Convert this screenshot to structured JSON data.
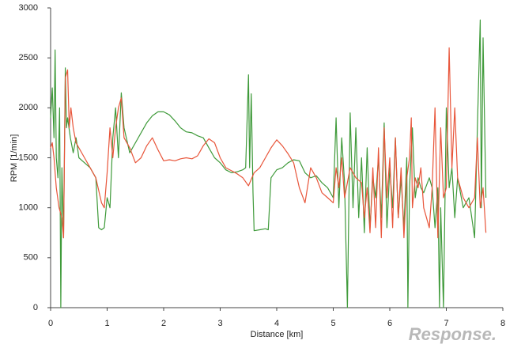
{
  "chart_data": {
    "type": "line",
    "xlabel": "Distance [km]",
    "ylabel": "RPM [1/min]",
    "watermark": "Response.",
    "xlim": [
      0,
      8
    ],
    "ylim": [
      0,
      3000
    ],
    "xticks": [
      0,
      1,
      2,
      3,
      4,
      5,
      6,
      7,
      8
    ],
    "yticks": [
      0,
      500,
      1000,
      1500,
      2000,
      2500,
      3000
    ],
    "grid": false,
    "series": [
      {
        "color": "#3f9a3a",
        "x": [
          0.0,
          0.03,
          0.06,
          0.08,
          0.1,
          0.13,
          0.16,
          0.18,
          0.2,
          0.23,
          0.26,
          0.28,
          0.3,
          0.35,
          0.4,
          0.45,
          0.5,
          0.6,
          0.7,
          0.8,
          0.85,
          0.9,
          0.95,
          1.0,
          1.05,
          1.1,
          1.15,
          1.2,
          1.25,
          1.3,
          1.4,
          1.5,
          1.6,
          1.7,
          1.8,
          1.9,
          2.0,
          2.1,
          2.2,
          2.3,
          2.4,
          2.5,
          2.6,
          2.7,
          2.8,
          2.9,
          3.0,
          3.1,
          3.2,
          3.3,
          3.4,
          3.45,
          3.5,
          3.52,
          3.55,
          3.58,
          3.6,
          3.7,
          3.8,
          3.85,
          3.9,
          4.0,
          4.1,
          4.2,
          4.3,
          4.4,
          4.5,
          4.6,
          4.7,
          4.8,
          4.9,
          5.0,
          5.05,
          5.1,
          5.15,
          5.2,
          5.25,
          5.3,
          5.35,
          5.4,
          5.45,
          5.5,
          5.55,
          5.6,
          5.65,
          5.7,
          5.75,
          5.8,
          5.85,
          5.9,
          5.95,
          6.0,
          6.05,
          6.1,
          6.15,
          6.2,
          6.25,
          6.3,
          6.32,
          6.35,
          6.4,
          6.45,
          6.5,
          6.55,
          6.6,
          6.7,
          6.75,
          6.8,
          6.85,
          6.88,
          6.9,
          6.95,
          7.0,
          7.05,
          7.1,
          7.15,
          7.2,
          7.3,
          7.4,
          7.5,
          7.55,
          7.6,
          7.62,
          7.65,
          7.7
        ],
        "values": [
          1900,
          2200,
          1700,
          2580,
          1500,
          1300,
          2000,
          0,
          1400,
          700,
          2400,
          1800,
          1900,
          1700,
          1550,
          1700,
          1500,
          1450,
          1400,
          1300,
          800,
          780,
          800,
          1100,
          1000,
          1700,
          2000,
          1500,
          2150,
          1800,
          1550,
          1650,
          1750,
          1850,
          1920,
          1960,
          1960,
          1930,
          1870,
          1800,
          1760,
          1750,
          1720,
          1700,
          1600,
          1500,
          1450,
          1380,
          1350,
          1360,
          1380,
          1400,
          2330,
          1400,
          2140,
          1150,
          770,
          780,
          790,
          780,
          1300,
          1380,
          1400,
          1450,
          1480,
          1470,
          1350,
          1300,
          1320,
          1250,
          1200,
          1100,
          1900,
          1000,
          1700,
          1250,
          0,
          1950,
          1000,
          1800,
          900,
          1500,
          750,
          1600,
          800,
          1300,
          1100,
          1500,
          900,
          1850,
          800,
          1400,
          1000,
          1700,
          900,
          1300,
          800,
          1500,
          0,
          1200,
          1800,
          1100,
          1300,
          1200,
          1150,
          1300,
          1200,
          800,
          1200,
          0,
          1000,
          0,
          2000,
          1200,
          1400,
          900,
          1300,
          1000,
          1100,
          700,
          1800,
          2880,
          1000,
          2700,
          1100
        ]
      },
      {
        "color": "#e8553a",
        "x": [
          0.0,
          0.03,
          0.06,
          0.1,
          0.15,
          0.2,
          0.23,
          0.26,
          0.3,
          0.33,
          0.36,
          0.4,
          0.45,
          0.5,
          0.6,
          0.7,
          0.8,
          0.9,
          0.95,
          1.0,
          1.05,
          1.1,
          1.15,
          1.2,
          1.25,
          1.3,
          1.4,
          1.5,
          1.6,
          1.7,
          1.8,
          1.9,
          2.0,
          2.1,
          2.2,
          2.3,
          2.4,
          2.5,
          2.6,
          2.7,
          2.8,
          2.9,
          3.0,
          3.1,
          3.2,
          3.3,
          3.4,
          3.5,
          3.6,
          3.7,
          3.8,
          3.9,
          4.0,
          4.1,
          4.2,
          4.3,
          4.4,
          4.5,
          4.6,
          4.7,
          4.8,
          4.9,
          5.0,
          5.05,
          5.1,
          5.15,
          5.2,
          5.3,
          5.4,
          5.5,
          5.55,
          5.6,
          5.65,
          5.7,
          5.75,
          5.8,
          5.85,
          5.9,
          5.95,
          6.0,
          6.05,
          6.1,
          6.15,
          6.2,
          6.25,
          6.3,
          6.35,
          6.38,
          6.4,
          6.45,
          6.5,
          6.55,
          6.6,
          6.7,
          6.75,
          6.8,
          6.85,
          6.9,
          6.95,
          7.0,
          7.05,
          7.1,
          7.15,
          7.2,
          7.3,
          7.4,
          7.5,
          7.55,
          7.6,
          7.65,
          7.7
        ],
        "values": [
          1600,
          1650,
          1500,
          1200,
          1000,
          900,
          700,
          2300,
          2380,
          1800,
          2000,
          1800,
          1650,
          1600,
          1500,
          1400,
          1300,
          1050,
          1000,
          1350,
          1800,
          1500,
          1800,
          2000,
          2100,
          1700,
          1600,
          1450,
          1500,
          1620,
          1700,
          1580,
          1470,
          1480,
          1470,
          1490,
          1500,
          1490,
          1520,
          1620,
          1690,
          1650,
          1500,
          1400,
          1370,
          1340,
          1300,
          1220,
          1350,
          1400,
          1500,
          1600,
          1680,
          1620,
          1540,
          1450,
          1200,
          1050,
          1400,
          1300,
          1150,
          1100,
          1050,
          1400,
          1200,
          1500,
          1100,
          1400,
          1300,
          1250,
          900,
          1200,
          750,
          1400,
          800,
          1600,
          700,
          1800,
          1100,
          1500,
          800,
          1700,
          900,
          1400,
          700,
          1300,
          1500,
          1900,
          1000,
          1300,
          1200,
          1400,
          1000,
          800,
          1200,
          2000,
          700,
          1800,
          1100,
          1200,
          2600,
          1400,
          2000,
          1300,
          1100,
          1000,
          1100,
          1700,
          1000,
          1200,
          750
        ]
      }
    ]
  }
}
